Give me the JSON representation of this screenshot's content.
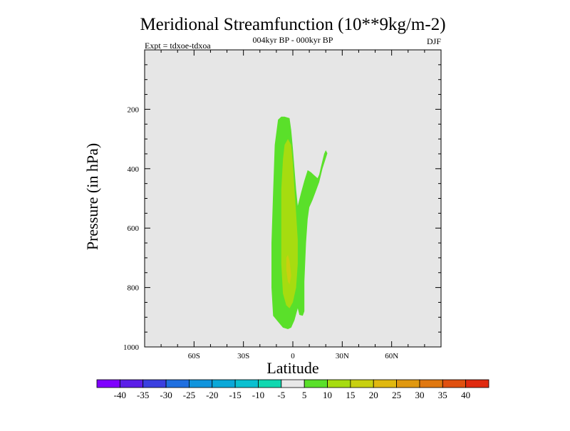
{
  "chart_data": {
    "type": "contour",
    "title": "Meridional Streamfunction (10**9kg/m-2)",
    "subtitle": "004kyr BP - 000kyr BP",
    "left_annotation": "Expt = tdxoe-tdxoa",
    "right_annotation": "DJF",
    "xlabel": "Latitude",
    "ylabel": "Pressure (in hPa)",
    "xlim": [
      -90,
      90
    ],
    "ylim": [
      1000,
      0
    ],
    "y_reversed": true,
    "x_ticks": [
      {
        "value": -60,
        "label": "60S"
      },
      {
        "value": -30,
        "label": "30S"
      },
      {
        "value": 0,
        "label": "0"
      },
      {
        "value": 30,
        "label": "30N"
      },
      {
        "value": 60,
        "label": "60N"
      }
    ],
    "y_ticks": [
      {
        "value": 200,
        "label": "200"
      },
      {
        "value": 400,
        "label": "400"
      },
      {
        "value": 600,
        "label": "600"
      },
      {
        "value": 800,
        "label": "800"
      },
      {
        "value": 1000,
        "label": "1000"
      }
    ],
    "plot_background": "#e6e6e6",
    "contour_levels": [
      -40,
      -35,
      -30,
      -25,
      -20,
      -15,
      -10,
      -5,
      5,
      10,
      15,
      20,
      25,
      30,
      35,
      40
    ],
    "colorbar": {
      "labels": [
        "-40",
        "-35",
        "-30",
        "-25",
        "-20",
        "-15",
        "-10",
        "-5",
        "5",
        "10",
        "15",
        "20",
        "25",
        "30",
        "35",
        "40"
      ],
      "colors": [
        "#7f00ff",
        "#5b1ee8",
        "#3a3fe0",
        "#1f6fe0",
        "#1094dd",
        "#0aa8d8",
        "#0ac0d0",
        "#10d8b0",
        "#e8e8e8",
        "#5ae02a",
        "#a6dc10",
        "#c8d010",
        "#e0b810",
        "#e09810",
        "#e07810",
        "#e05010",
        "#e02a10"
      ]
    },
    "filled_regions": [
      {
        "name": "5 to 10",
        "color": "#5ae02a",
        "polygons": [
          [
            [
              -5,
              225
            ],
            [
              -2,
              230
            ],
            [
              -1,
              270
            ],
            [
              0,
              330
            ],
            [
              1,
              400
            ],
            [
              2,
              470
            ],
            [
              3,
              525
            ],
            [
              5,
              480
            ],
            [
              7,
              440
            ],
            [
              9,
              405
            ],
            [
              11,
              412
            ],
            [
              13,
              422
            ],
            [
              15,
              432
            ],
            [
              16,
              420
            ],
            [
              17,
              395
            ],
            [
              19,
              350
            ],
            [
              20,
              338
            ],
            [
              21,
              348
            ],
            [
              18,
              400
            ],
            [
              16,
              445
            ],
            [
              14,
              475
            ],
            [
              12,
              505
            ],
            [
              10,
              530
            ],
            [
              9,
              570
            ],
            [
              8,
              650
            ],
            [
              7,
              780
            ],
            [
              7,
              880
            ],
            [
              6,
              895
            ],
            [
              4,
              892
            ],
            [
              3,
              870
            ],
            [
              1,
              910
            ],
            [
              -1,
              935
            ],
            [
              -3,
              940
            ],
            [
              -6,
              935
            ],
            [
              -9,
              915
            ],
            [
              -12,
              895
            ],
            [
              -13,
              800
            ],
            [
              -13,
              650
            ],
            [
              -12,
              480
            ],
            [
              -11,
              320
            ],
            [
              -9,
              235
            ],
            [
              -7,
              225
            ]
          ]
        ]
      },
      {
        "name": "10 to 15",
        "color": "#a6dc10",
        "polygons": [
          [
            [
              -3,
              300
            ],
            [
              -1,
              320
            ],
            [
              0,
              380
            ],
            [
              1,
              470
            ],
            [
              2,
              550
            ],
            [
              3,
              640
            ],
            [
              3,
              720
            ],
            [
              2,
              800
            ],
            [
              0,
              850
            ],
            [
              -2,
              870
            ],
            [
              -4,
              860
            ],
            [
              -6,
              820
            ],
            [
              -7,
              720
            ],
            [
              -7,
              600
            ],
            [
              -7,
              470
            ],
            [
              -6,
              370
            ],
            [
              -5,
              320
            ]
          ]
        ]
      },
      {
        "name": "15 to 20",
        "color": "#c8d010",
        "polygons": [
          [
            [
              -3,
              690
            ],
            [
              -2,
              710
            ],
            [
              -1,
              760
            ],
            [
              -2,
              790
            ],
            [
              -3,
              780
            ],
            [
              -4,
              740
            ],
            [
              -4,
              700
            ]
          ]
        ]
      }
    ]
  }
}
